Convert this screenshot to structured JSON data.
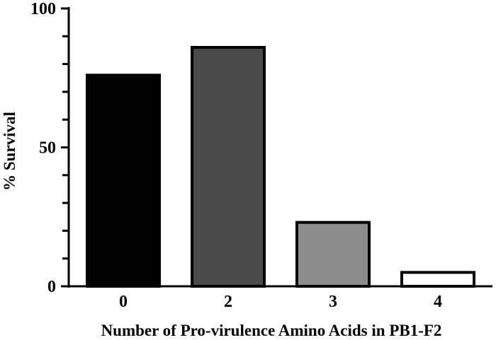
{
  "chart_data": {
    "type": "bar",
    "categories": [
      "0",
      "2",
      "3",
      "4"
    ],
    "values": [
      76,
      86,
      23,
      5
    ],
    "colors": [
      "#000000",
      "#4a4a4a",
      "#8c8c8c",
      "#ffffff"
    ],
    "title": "",
    "xlabel": "Number of Pro-virulence Amino Acids in PB1-F2",
    "ylabel": "% Survival",
    "ylim": [
      0,
      100
    ],
    "yticks_labeled": [
      0,
      50,
      100
    ],
    "yticks_minor_step": 10,
    "grid": false,
    "legend": "none"
  }
}
